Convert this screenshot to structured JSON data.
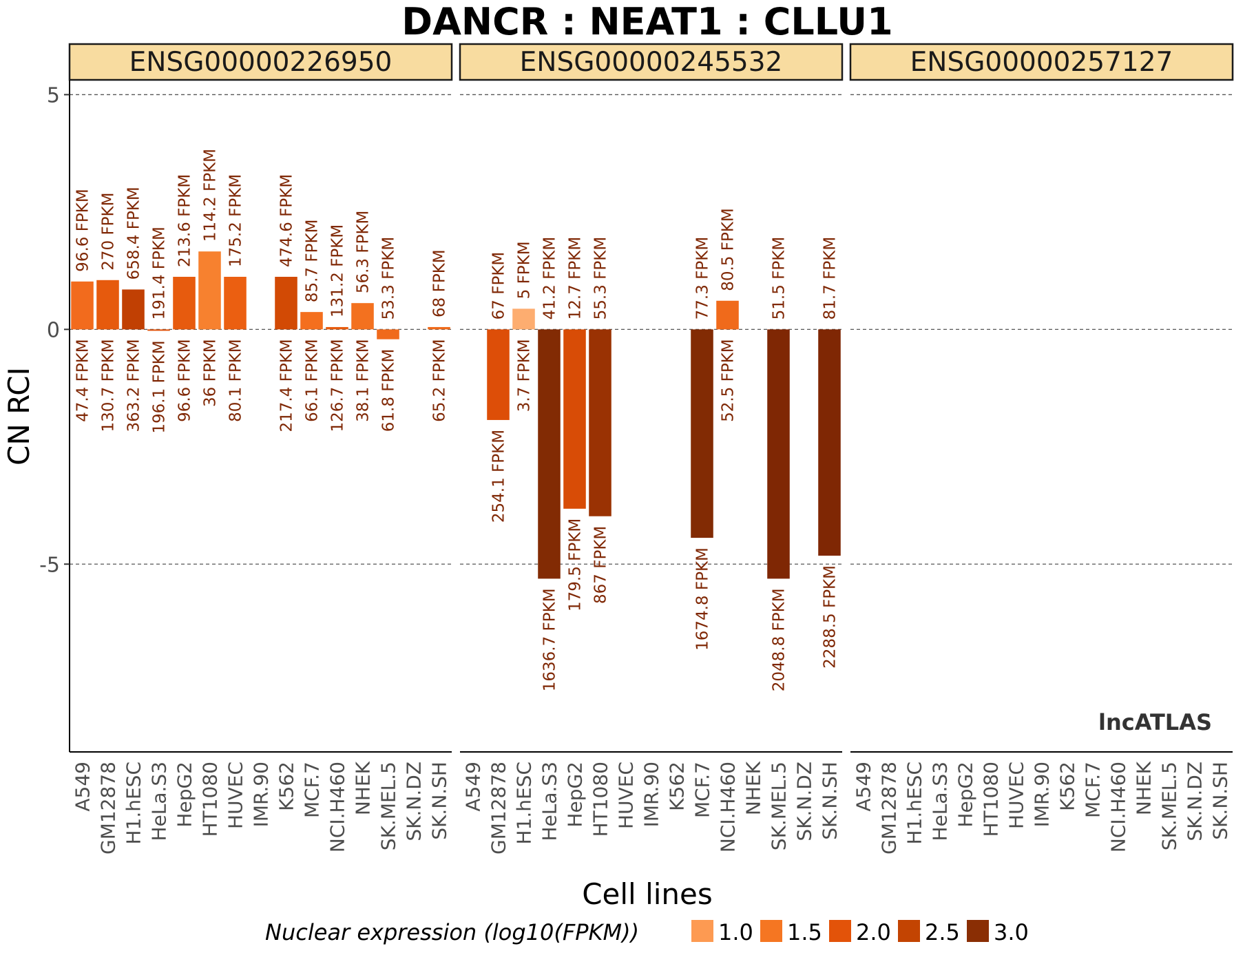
{
  "chart_data": {
    "type": "bar",
    "title": "DANCR : NEAT1 : CLLU1",
    "xlabel": "Cell lines",
    "ylabel": "CN RCI",
    "ylim": [
      -9.0,
      5.3
    ],
    "yticks": [
      5,
      0,
      -5
    ],
    "ytick_labels": [
      "5",
      "0",
      "-5"
    ],
    "grid": "dashed horizontal at y ticks",
    "watermark": "lncATLAS",
    "categories": [
      "A549",
      "GM12878",
      "H1.hESC",
      "HeLa.S3",
      "HepG2",
      "HT1080",
      "HUVEC",
      "IMR.90",
      "K562",
      "MCF.7",
      "NCI.H460",
      "NHEK",
      "SK.MEL.5",
      "SK.N.DZ",
      "SK.N.SH"
    ],
    "legend": {
      "title": "Nuclear expression (log10(FPKM))",
      "placement": "bottom",
      "entries": [
        {
          "label": "1.0",
          "color": "#fd9a52"
        },
        {
          "label": "1.5",
          "color": "#f57622"
        },
        {
          "label": "2.0",
          "color": "#e35309"
        },
        {
          "label": "2.5",
          "color": "#c34402"
        },
        {
          "label": "3.0",
          "color": "#8a2e04"
        }
      ]
    },
    "panels": [
      {
        "name": "ENSG00000226950",
        "bars": [
          {
            "cell": "A549",
            "value": 1.02,
            "color": "#f26b1d",
            "top_label": "96.6 FPKM",
            "bottom_label": "47.4 FPKM"
          },
          {
            "cell": "GM12878",
            "value": 1.05,
            "color": "#e65a0d",
            "top_label": "270 FPKM",
            "bottom_label": "130.7 FPKM"
          },
          {
            "cell": "H1.hESC",
            "value": 0.85,
            "color": "#c14003",
            "top_label": "658.4 FPKM",
            "bottom_label": "363.2 FPKM"
          },
          {
            "cell": "HeLa.S3",
            "value": -0.03,
            "color": "#e25209",
            "top_label": "191.4 FPKM",
            "bottom_label": "196.1 FPKM"
          },
          {
            "cell": "HepG2",
            "value": 1.12,
            "color": "#e75b0e",
            "top_label": "213.6 FPKM",
            "bottom_label": "96.6 FPKM"
          },
          {
            "cell": "HT1080",
            "value": 1.66,
            "color": "#f7812f",
            "top_label": "114.2 FPKM",
            "bottom_label": "36 FPKM"
          },
          {
            "cell": "HUVEC",
            "value": 1.12,
            "color": "#eb5f11",
            "top_label": "175.2 FPKM",
            "bottom_label": "80.1 FPKM"
          },
          {
            "cell": "K562",
            "value": 1.12,
            "color": "#d24a05",
            "top_label": "474.6 FPKM",
            "bottom_label": "217.4 FPKM"
          },
          {
            "cell": "MCF.7",
            "value": 0.37,
            "color": "#f46f1e",
            "top_label": "85.7 FPKM",
            "bottom_label": "66.1 FPKM"
          },
          {
            "cell": "NCI.H460",
            "value": 0.05,
            "color": "#e85c0f",
            "top_label": "131.2 FPKM",
            "bottom_label": "126.7 FPKM"
          },
          {
            "cell": "NHEK",
            "value": 0.56,
            "color": "#f3711f",
            "top_label": "56.3 FPKM",
            "bottom_label": "38.1 FPKM"
          },
          {
            "cell": "SK.MEL.5",
            "value": -0.21,
            "color": "#f06a1b",
            "top_label": "53.3 FPKM",
            "bottom_label": "61.8 FPKM"
          },
          {
            "cell": "SK.N.SH",
            "value": 0.05,
            "color": "#f06b1b",
            "top_label": "68 FPKM",
            "bottom_label": "65.2 FPKM"
          }
        ]
      },
      {
        "name": "ENSG00000245532",
        "bars": [
          {
            "cell": "GM12878",
            "value": -1.93,
            "color": "#dd4e08",
            "top_label": "67 FPKM",
            "bottom_label": "254.1 FPKM"
          },
          {
            "cell": "H1.hESC",
            "value": 0.44,
            "color": "#fdad70",
            "top_label": "5 FPKM",
            "bottom_label": "3.7 FPKM"
          },
          {
            "cell": "HeLa.S3",
            "value": -5.31,
            "color": "#822b04",
            "top_label": "41.2 FPKM",
            "bottom_label": "1636.7 FPKM"
          },
          {
            "cell": "HepG2",
            "value": -3.82,
            "color": "#d84c06",
            "top_label": "12.7 FPKM",
            "bottom_label": "179.5 FPKM"
          },
          {
            "cell": "HT1080",
            "value": -3.98,
            "color": "#9a3203",
            "top_label": "55.3 FPKM",
            "bottom_label": "867 FPKM"
          },
          {
            "cell": "MCF.7",
            "value": -4.44,
            "color": "#822b04",
            "top_label": "77.3 FPKM",
            "bottom_label": "1674.8 FPKM"
          },
          {
            "cell": "NCI.H460",
            "value": 0.61,
            "color": "#f06a1b",
            "top_label": "80.5 FPKM",
            "bottom_label": "52.5 FPKM"
          },
          {
            "cell": "SK.MEL.5",
            "value": -5.31,
            "color": "#7f2704",
            "top_label": "51.5 FPKM",
            "bottom_label": "2048.8 FPKM"
          },
          {
            "cell": "SK.N.SH",
            "value": -4.82,
            "color": "#7f2704",
            "top_label": "81.7 FPKM",
            "bottom_label": "2288.5 FPKM"
          }
        ]
      },
      {
        "name": "ENSG00000257127",
        "bars": []
      }
    ]
  }
}
